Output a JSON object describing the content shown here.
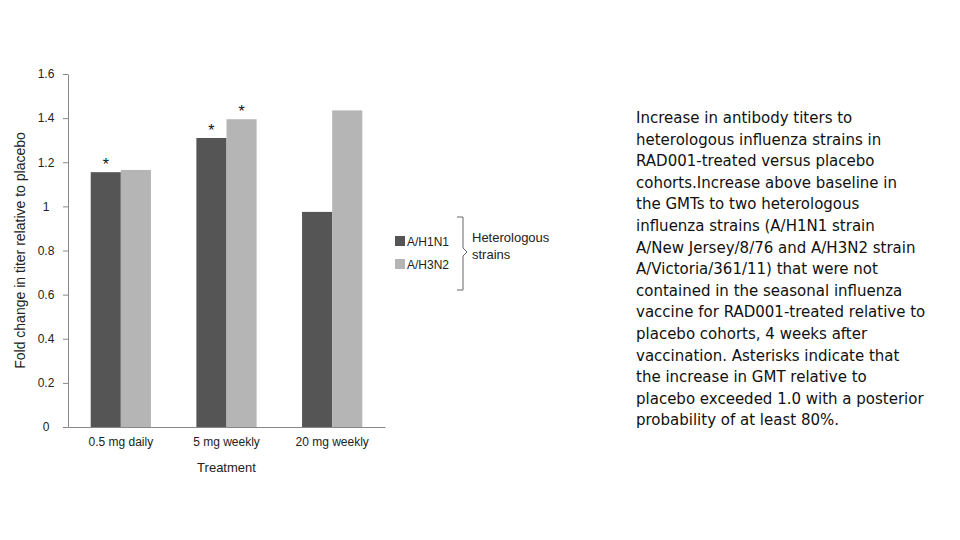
{
  "chart_data": {
    "type": "bar",
    "categories": [
      "0.5 mg daily",
      "5 mg  weekly",
      "20 mg weekly"
    ],
    "series": [
      {
        "name": "A/H1N1",
        "color": "#555555",
        "values": [
          1.155,
          1.31,
          0.975
        ]
      },
      {
        "name": "A/H3N2",
        "color": "#b5b5b5",
        "values": [
          1.165,
          1.395,
          1.435
        ]
      }
    ],
    "x_label": "Treatment",
    "y_label": "Fold change in titer relative to placebo",
    "ylim": [
      0,
      1.6
    ],
    "yticks": [
      0,
      0.2,
      0.4,
      0.6,
      0.8,
      1,
      1.2,
      1.4,
      1.6
    ],
    "grid": false,
    "legend": "right",
    "legend_title": "Heterologous strains",
    "annotations": [
      {
        "text": "*",
        "category": "0.5 mg daily",
        "series": "A/H1N1"
      },
      {
        "text": "*",
        "category": "5 mg  weekly",
        "series": "A/H1N1"
      },
      {
        "text": "*",
        "category": "5 mg  weekly",
        "series": "A/H3N2"
      }
    ],
    "caption": "Increase in antibody titers to heterologous influenza strains in RAD001-treated versus placebo cohorts.Increase above baseline in the GMTs to two heterologous influenza strains (A/H1N1 strain A/New Jersey/8/76 and A/H3N2 strain A/Victoria/361/11) that were not contained in the seasonal influenza vaccine for RAD001-treated relative to placebo cohorts, 4 weeks after vaccination. Asterisks indicate that the increase in GMT relative to placebo exceeded 1.0 with a posterior probability of at least 80%."
  }
}
